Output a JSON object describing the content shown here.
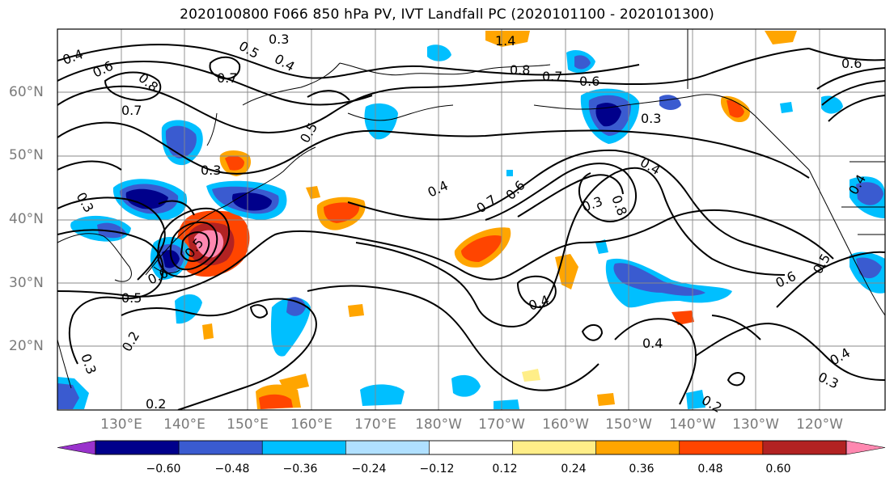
{
  "title": "2020100800 F066 850 hPa PV, IVT Landfall PC (2020101100 - 2020101300)",
  "lat_labels": [
    "60°N",
    "50°N",
    "40°N",
    "30°N",
    "20°N"
  ],
  "lon_labels": [
    "130°E",
    "140°E",
    "150°E",
    "160°E",
    "170°E",
    "180°W",
    "170°W",
    "160°W",
    "150°W",
    "140°W",
    "130°W",
    "120°W"
  ],
  "colorbar": {
    "colors": [
      "#9932cc",
      "#00008b",
      "#3a5bd0",
      "#00bfff",
      "#b0e0ff",
      "#ffffff",
      "#ffee88",
      "#ffa500",
      "#ff4500",
      "#b22222",
      "#ff88b0"
    ],
    "tick_labels": [
      "−0.60",
      "−0.48",
      "−0.36",
      "−0.24",
      "−0.12",
      "0.12",
      "0.24",
      "0.36",
      "0.48",
      "0.60"
    ]
  },
  "contour_labels": [
    "0.4",
    "0.6",
    "0.8",
    "0.7",
    "0.5",
    "0.3",
    "0.4",
    "1.4",
    "0.8",
    "0.7",
    "0.6",
    "0.7",
    "0.6",
    "0.3",
    "0.4",
    "0.3",
    "0.3",
    "0.4",
    "0.5",
    "0.7",
    "0.6",
    "0.3",
    "0.8",
    "0.5",
    "0.6",
    "0.5",
    "0.4",
    "0.4",
    "0.2",
    "0.3",
    "0.2",
    "0.4",
    "0.3",
    "0.2",
    "0.6",
    "0.4",
    "0.5"
  ]
}
